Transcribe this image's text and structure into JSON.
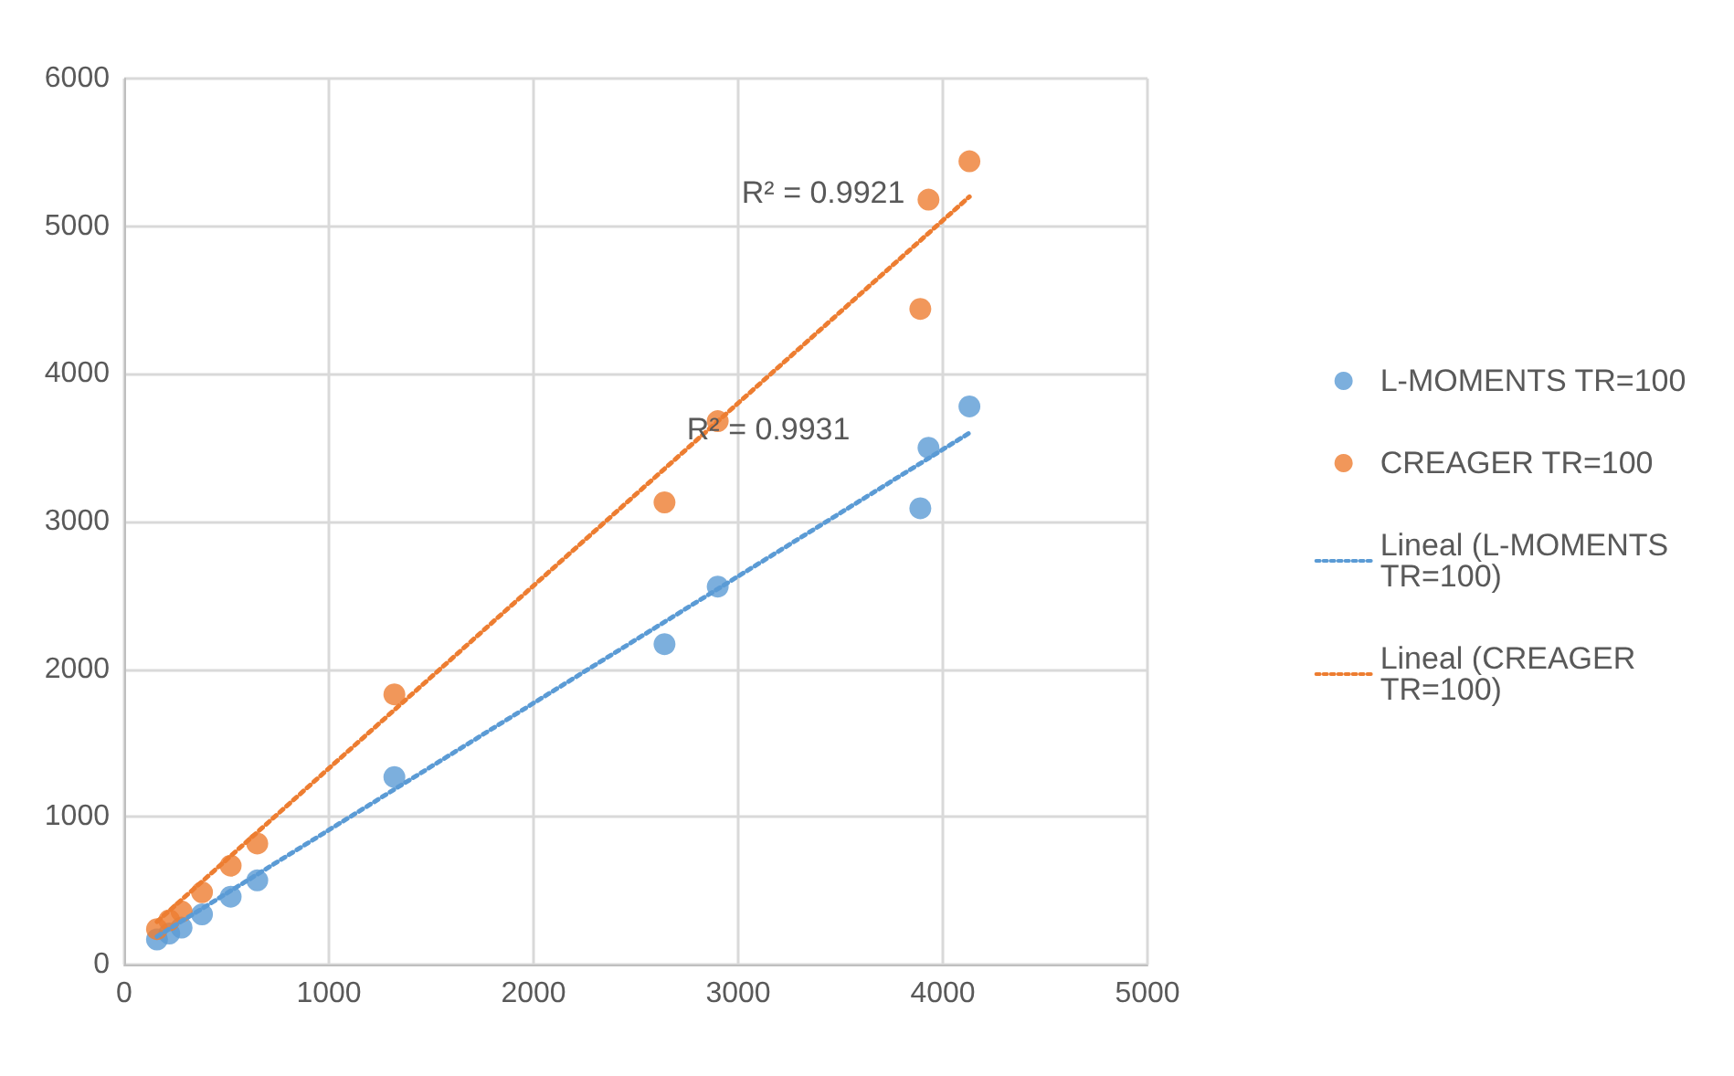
{
  "chart_data": {
    "type": "scatter",
    "marker": "circle",
    "grid": true,
    "legend": "right",
    "xlim": [
      0,
      5000
    ],
    "xticks": [
      0,
      1000,
      2000,
      3000,
      4000,
      5000
    ],
    "ylim": [
      0,
      6000
    ],
    "yticks": [
      0,
      1000,
      2000,
      3000,
      4000,
      5000,
      6000
    ],
    "series": [
      {
        "name": "L-MOMENTS TR=100",
        "color": "#5b9bd5",
        "x": [
          160,
          220,
          280,
          380,
          520,
          650,
          1320,
          2640,
          2900,
          3890,
          3930,
          4130
        ],
        "values": [
          170,
          210,
          250,
          340,
          460,
          570,
          1270,
          2170,
          2560,
          3090,
          3500,
          3780
        ]
      },
      {
        "name": "CREAGER TR=100",
        "color": "#ed7d31",
        "x": [
          160,
          220,
          280,
          380,
          520,
          650,
          1320,
          2640,
          2900,
          3890,
          3930,
          4130
        ],
        "values": [
          240,
          300,
          360,
          490,
          670,
          820,
          1830,
          3130,
          3680,
          4440,
          5180,
          5440
        ]
      },
      {
        "name": "Lineal (L-MOMENTS TR=100)",
        "type": "line",
        "line_style": "dotted",
        "marker": "none",
        "color": "#5b9bd5",
        "x": [
          160,
          4130
        ],
        "values": [
          190,
          3600
        ]
      },
      {
        "name": "Lineal (CREAGER TR=100)",
        "type": "line",
        "line_style": "dotted",
        "marker": "none",
        "color": "#ed7d31",
        "x": [
          160,
          4130
        ],
        "values": [
          290,
          5200
        ]
      }
    ],
    "annotations": [
      "R² = 0.9931",
      "R² = 0.9921"
    ]
  }
}
